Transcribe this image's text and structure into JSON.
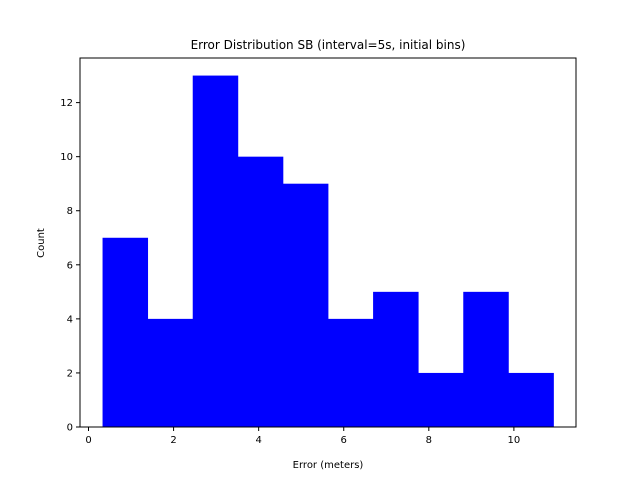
{
  "chart_data": {
    "type": "bar",
    "title": "Error Distribution SB (interval=5s, initial bins)",
    "xlabel": "Error (meters)",
    "ylabel": "Count",
    "bin_edges": [
      0.33,
      1.39,
      2.45,
      3.51,
      4.57,
      5.63,
      6.69,
      7.75,
      8.81,
      9.87,
      10.93
    ],
    "values": [
      7,
      4,
      13,
      10,
      9,
      4,
      5,
      2,
      5,
      2
    ],
    "xlim": [
      -0.2,
      11.46
    ],
    "ylim": [
      0,
      13.65
    ],
    "xticks": [
      0,
      2,
      4,
      6,
      8,
      10
    ],
    "yticks": [
      0,
      2,
      4,
      6,
      8,
      10,
      12
    ],
    "bar_color": "#0000ff",
    "grid": false,
    "legend": "none"
  }
}
